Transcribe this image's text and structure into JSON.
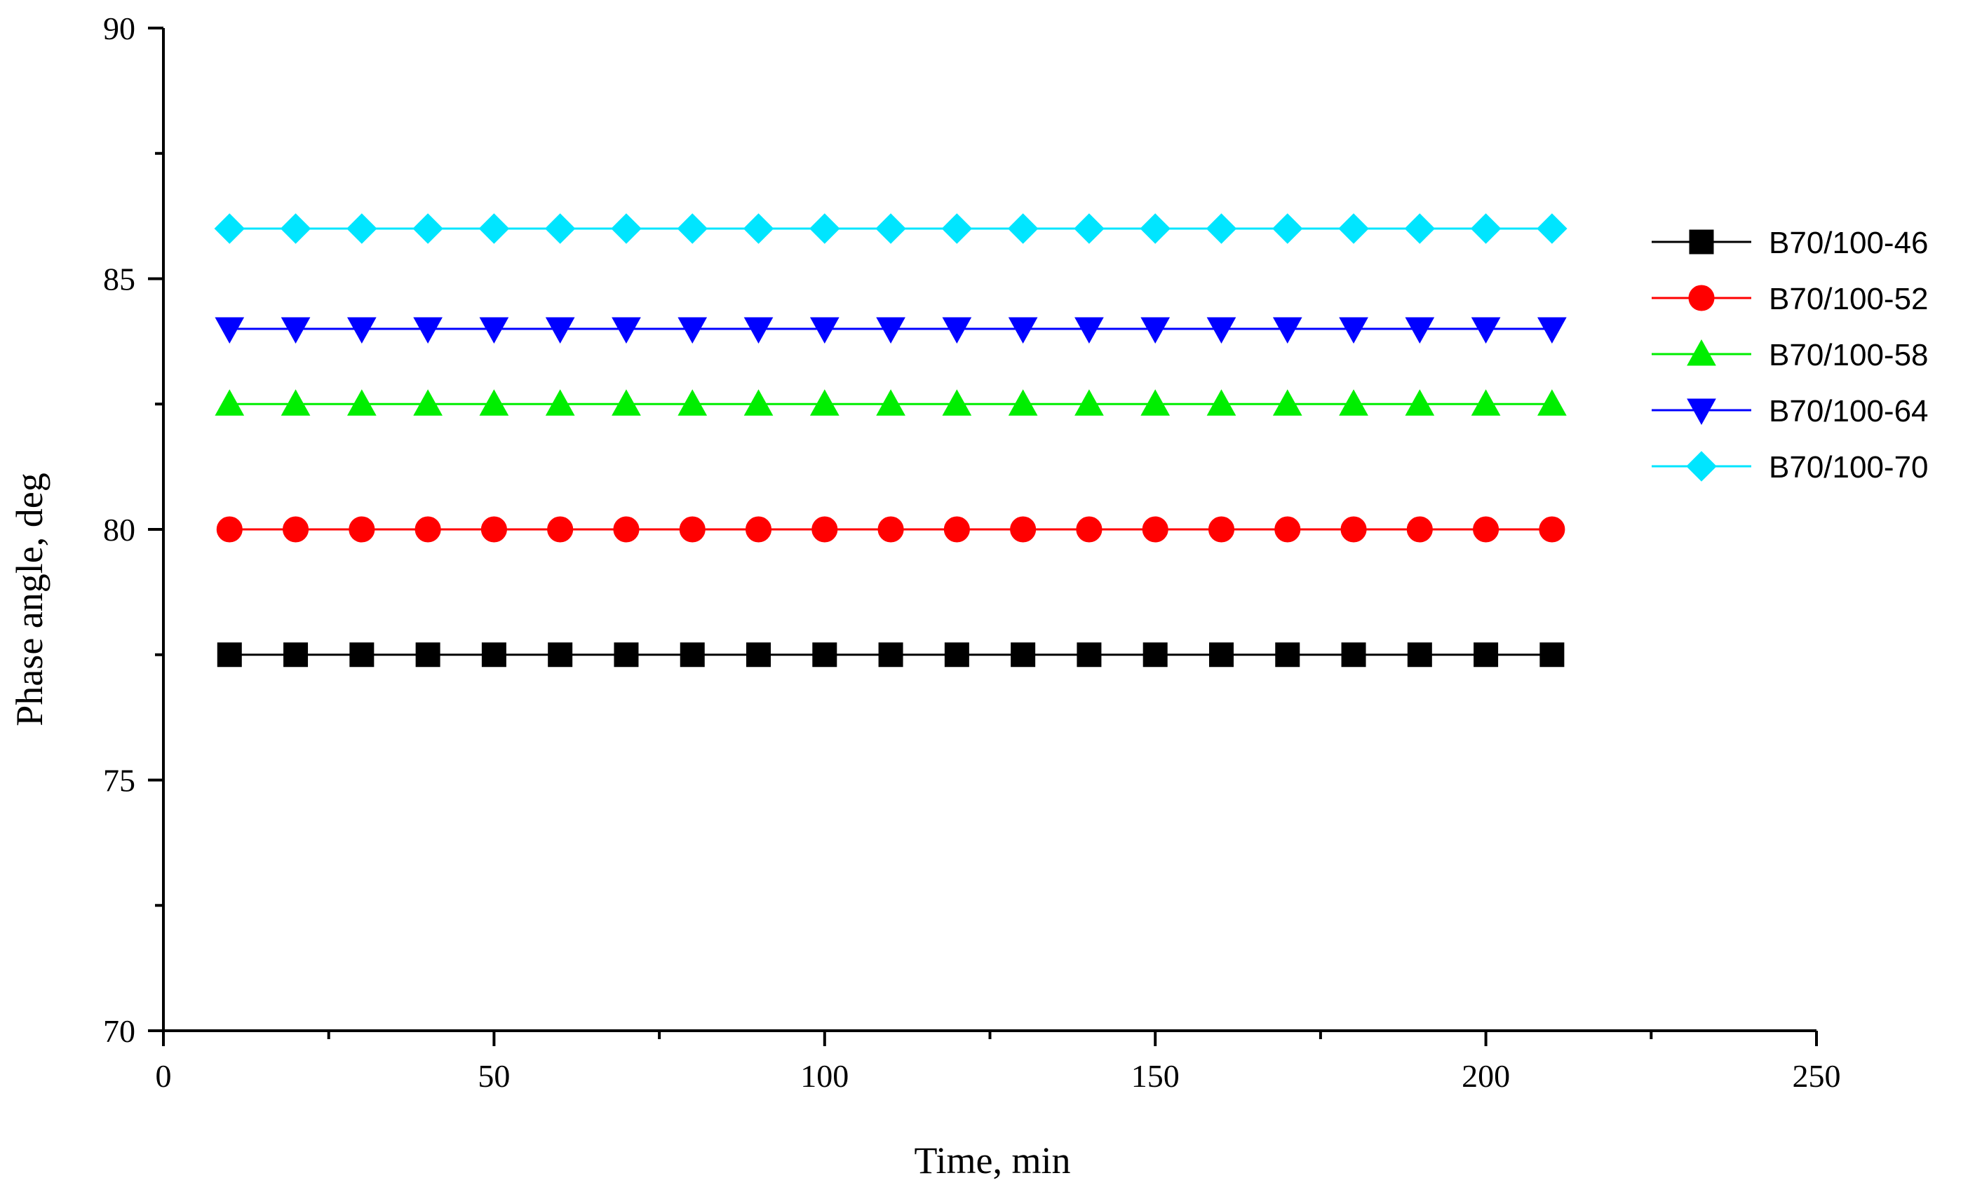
{
  "chart_data": {
    "type": "line",
    "title": "",
    "xlabel": "Time, min",
    "ylabel": "Phase angle, deg",
    "xlim": [
      0,
      250
    ],
    "ylim": [
      70,
      90
    ],
    "x_major_ticks": [
      0,
      50,
      100,
      150,
      200,
      250
    ],
    "x_minor_ticks": [
      25,
      75,
      125,
      175,
      225
    ],
    "y_major_ticks": [
      70,
      75,
      80,
      85,
      90
    ],
    "y_minor_ticks": [
      72.5,
      77.5,
      82.5,
      87.5
    ],
    "x_tick_labels": [
      "0",
      "50",
      "100",
      "150",
      "200",
      "250"
    ],
    "y_tick_labels": [
      "70",
      "75",
      "80",
      "85",
      "90"
    ],
    "grid": false,
    "legend_position": "right",
    "x": [
      10,
      20,
      30,
      40,
      50,
      60,
      70,
      80,
      90,
      100,
      110,
      120,
      130,
      140,
      150,
      160,
      170,
      180,
      190,
      200,
      210
    ],
    "series": [
      {
        "name": "B70/100-46",
        "color": "#000000",
        "marker": "square",
        "values": [
          77.5,
          77.5,
          77.5,
          77.5,
          77.5,
          77.5,
          77.5,
          77.5,
          77.5,
          77.5,
          77.5,
          77.5,
          77.5,
          77.5,
          77.5,
          77.5,
          77.5,
          77.5,
          77.5,
          77.5,
          77.5
        ]
      },
      {
        "name": "B70/100-52",
        "color": "#ff0000",
        "marker": "circle",
        "values": [
          80,
          80,
          80,
          80,
          80,
          80,
          80,
          80,
          80,
          80,
          80,
          80,
          80,
          80,
          80,
          80,
          80,
          80,
          80,
          80,
          80
        ]
      },
      {
        "name": "B70/100-58",
        "color": "#00ee00",
        "marker": "triangle-up",
        "values": [
          82.5,
          82.5,
          82.5,
          82.5,
          82.5,
          82.5,
          82.5,
          82.5,
          82.5,
          82.5,
          82.5,
          82.5,
          82.5,
          82.5,
          82.5,
          82.5,
          82.5,
          82.5,
          82.5,
          82.5,
          82.5
        ]
      },
      {
        "name": "B70/100-64",
        "color": "#0000ff",
        "marker": "triangle-down",
        "values": [
          84,
          84,
          84,
          84,
          84,
          84,
          84,
          84,
          84,
          84,
          84,
          84,
          84,
          84,
          84,
          84,
          84,
          84,
          84,
          84,
          84
        ]
      },
      {
        "name": "B70/100-70",
        "color": "#00e5ff",
        "marker": "diamond",
        "values": [
          86,
          86,
          86,
          86,
          86,
          86,
          86,
          86,
          86,
          86,
          86,
          86,
          86,
          86,
          86,
          86,
          86,
          86,
          86,
          86,
          86
        ]
      }
    ]
  }
}
